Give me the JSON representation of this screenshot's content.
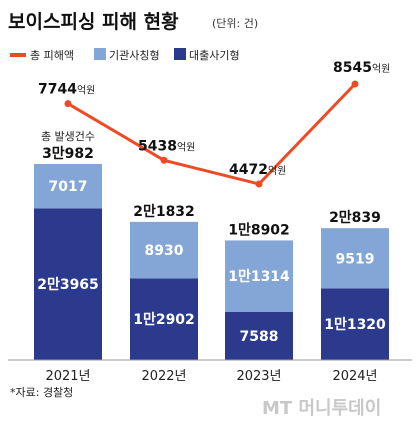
{
  "title": "보이스피싱 피해 현황",
  "unit_label": "(단위: 건)",
  "legend": [
    {
      "label": "총 피해액",
      "color": "#ef4a23",
      "kind": "line"
    },
    {
      "label": "기관사칭형",
      "color": "#84a6d6",
      "kind": "box"
    },
    {
      "label": "대출사기형",
      "color": "#2b3a8c",
      "kind": "box"
    }
  ],
  "total_caption": "총 발생건수",
  "source": "*자료: 경찰청",
  "watermark": "MT 머니투데이",
  "chart_data": {
    "type": "bar",
    "stacked": true,
    "categories": [
      "2021년",
      "2022년",
      "2023년",
      "2024년"
    ],
    "series": [
      {
        "name": "대출사기형",
        "color": "#2b3a8c",
        "values": [
          23965,
          12902,
          7588,
          11320
        ],
        "labels": [
          "2만3965",
          "1만2902",
          "7588",
          "1만1320"
        ]
      },
      {
        "name": "기관사칭형",
        "color": "#84a6d6",
        "values": [
          7017,
          8930,
          11314,
          9519
        ],
        "labels": [
          "7017",
          "8930",
          "1만1314",
          "9519"
        ]
      }
    ],
    "totals": [
      30982,
      21832,
      18902,
      20839
    ],
    "total_labels": [
      "3만982",
      "2만1832",
      "1만8902",
      "2만839"
    ],
    "line": {
      "name": "총 피해액",
      "color": "#ef4a23",
      "values": [
        7744,
        5438,
        4472,
        8545
      ],
      "labels": [
        "7744",
        "5438",
        "4472",
        "8545"
      ],
      "suffix": "억원"
    }
  }
}
